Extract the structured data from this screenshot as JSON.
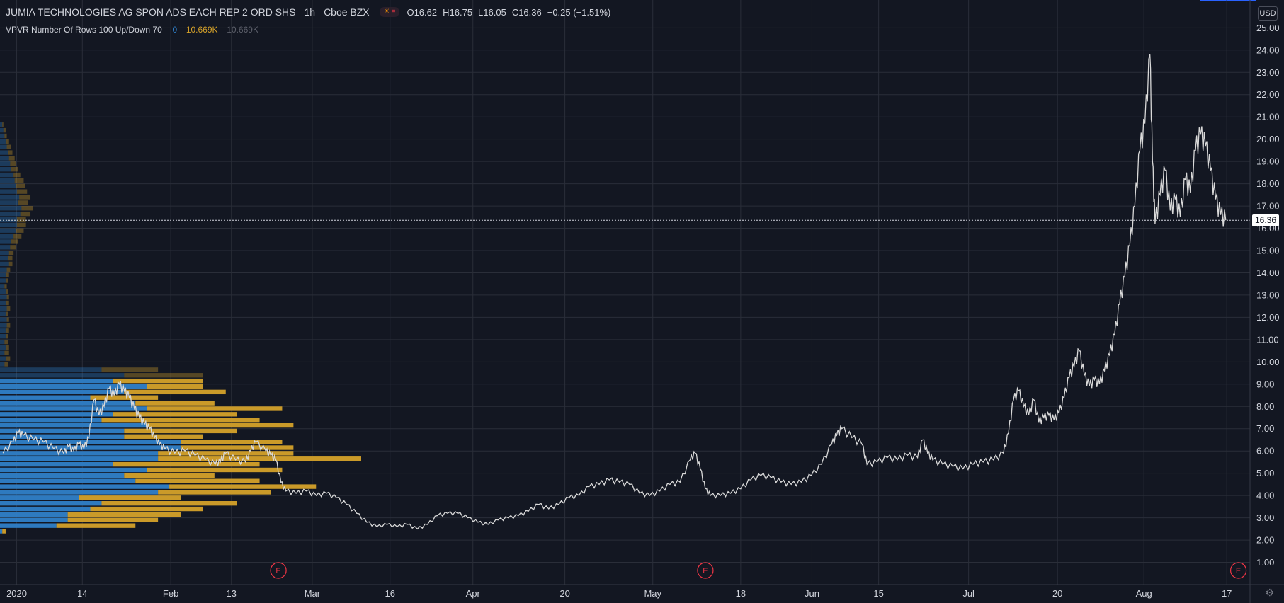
{
  "header": {
    "symbol": "JUMIA TECHNOLOGIES AG SPON ADS EACH REP 2 ORD SHS",
    "interval": "1h",
    "exchange": "Cboe BZX",
    "ohlc": {
      "open": "O16.62",
      "high": "H16.75",
      "low": "L16.05",
      "close": "C16.36",
      "change": "−0.25 (−1.51%)"
    }
  },
  "indicator": {
    "label": "VPVR Number Of Rows 100 Up/Down 70",
    "v1": "0",
    "v2": "10.669K",
    "v3": "10.669K"
  },
  "currency": "USD",
  "last_price": "16.36",
  "colors": {
    "background": "#131722",
    "grid": "#2a2e39",
    "axis_text": "#d1d4dc",
    "up_volume": "#2f7fc8",
    "down_volume": "#d4a12a",
    "price": "#d9d9d9",
    "earnings": "#f23645",
    "v1": "#2f7fc8",
    "v2": "#d4a12a",
    "v3": "#5d606b"
  },
  "icons": {
    "settings": "gear-icon",
    "earnings": "earnings-marker-icon"
  },
  "chart_data": {
    "type": "line",
    "y_ticks": [
      "1.00",
      "2.00",
      "3.00",
      "4.00",
      "5.00",
      "6.00",
      "7.00",
      "8.00",
      "9.00",
      "10.00",
      "11.00",
      "12.00",
      "13.00",
      "14.00",
      "15.00",
      "16.00",
      "17.00",
      "18.00",
      "19.00",
      "20.00",
      "21.00",
      "22.00",
      "23.00",
      "24.00",
      "25.00"
    ],
    "ylim": [
      0,
      26.25
    ],
    "x_ticks": [
      {
        "label": "2020",
        "t": 0.7
      },
      {
        "label": "14",
        "t": 13.7
      },
      {
        "label": "Feb",
        "t": 31.2
      },
      {
        "label": "13",
        "t": 43.2
      },
      {
        "label": "Mar",
        "t": 59.2
      },
      {
        "label": "16",
        "t": 74.6
      },
      {
        "label": "Apr",
        "t": 91.0
      },
      {
        "label": "20",
        "t": 109.2
      },
      {
        "label": "May",
        "t": 126.6
      },
      {
        "label": "18",
        "t": 144.0
      },
      {
        "label": "Jun",
        "t": 158.1
      },
      {
        "label": "15",
        "t": 171.3
      },
      {
        "label": "Jul",
        "t": 189.1
      },
      {
        "label": "20",
        "t": 206.7
      },
      {
        "label": "Aug",
        "t": 223.8
      },
      {
        "label": "17",
        "t": 240.2
      }
    ],
    "xlim": [
      -2.6,
      244.8
    ],
    "price_series": [
      [
        -2,
        5.9
      ],
      [
        0,
        6.4
      ],
      [
        1,
        6.8
      ],
      [
        2,
        6.7
      ],
      [
        4,
        6.5
      ],
      [
        6,
        6.4
      ],
      [
        8,
        6.1
      ],
      [
        10,
        5.9
      ],
      [
        11,
        6.2
      ],
      [
        12,
        6.0
      ],
      [
        13,
        6.3
      ],
      [
        14,
        6.1
      ],
      [
        15,
        6.6
      ],
      [
        16,
        8.3
      ],
      [
        17,
        7.6
      ],
      [
        18,
        8.0
      ],
      [
        19,
        8.8
      ],
      [
        20,
        8.5
      ],
      [
        21,
        9.0
      ],
      [
        22,
        8.7
      ],
      [
        23,
        8.4
      ],
      [
        24,
        7.9
      ],
      [
        25,
        7.5
      ],
      [
        26,
        7.2
      ],
      [
        27,
        7.0
      ],
      [
        28,
        6.6
      ],
      [
        29,
        6.3
      ],
      [
        30,
        6.1
      ],
      [
        32,
        5.9
      ],
      [
        34,
        6.0
      ],
      [
        36,
        5.8
      ],
      [
        38,
        5.6
      ],
      [
        40,
        5.4
      ],
      [
        41,
        5.5
      ],
      [
        42,
        5.9
      ],
      [
        44,
        5.6
      ],
      [
        46,
        5.5
      ],
      [
        47,
        6.0
      ],
      [
        48,
        6.4
      ],
      [
        50,
        6.0
      ],
      [
        51,
        5.8
      ],
      [
        52,
        5.6
      ],
      [
        53,
        4.6
      ],
      [
        54,
        4.2
      ],
      [
        56,
        4.1
      ],
      [
        58,
        4.2
      ],
      [
        60,
        4.0
      ],
      [
        62,
        4.1
      ],
      [
        64,
        3.9
      ],
      [
        66,
        3.6
      ],
      [
        68,
        3.2
      ],
      [
        70,
        2.8
      ],
      [
        72,
        2.6
      ],
      [
        74,
        2.7
      ],
      [
        76,
        2.6
      ],
      [
        78,
        2.7
      ],
      [
        80,
        2.5
      ],
      [
        82,
        2.7
      ],
      [
        84,
        3.1
      ],
      [
        86,
        3.2
      ],
      [
        88,
        3.2
      ],
      [
        90,
        3.0
      ],
      [
        92,
        2.8
      ],
      [
        94,
        2.7
      ],
      [
        96,
        2.9
      ],
      [
        98,
        3.0
      ],
      [
        100,
        3.1
      ],
      [
        102,
        3.3
      ],
      [
        104,
        3.6
      ],
      [
        106,
        3.4
      ],
      [
        108,
        3.6
      ],
      [
        110,
        3.9
      ],
      [
        112,
        4.0
      ],
      [
        114,
        4.4
      ],
      [
        116,
        4.5
      ],
      [
        118,
        4.7
      ],
      [
        120,
        4.6
      ],
      [
        122,
        4.5
      ],
      [
        124,
        4.1
      ],
      [
        126,
        4.0
      ],
      [
        128,
        4.2
      ],
      [
        130,
        4.5
      ],
      [
        132,
        4.6
      ],
      [
        134,
        5.6
      ],
      [
        135,
        5.9
      ],
      [
        136,
        5.2
      ],
      [
        137,
        4.3
      ],
      [
        138,
        4.0
      ],
      [
        140,
        4.0
      ],
      [
        142,
        4.1
      ],
      [
        144,
        4.3
      ],
      [
        146,
        4.7
      ],
      [
        148,
        4.9
      ],
      [
        150,
        4.8
      ],
      [
        152,
        4.6
      ],
      [
        154,
        4.5
      ],
      [
        156,
        4.6
      ],
      [
        158,
        4.9
      ],
      [
        160,
        5.4
      ],
      [
        162,
        6.3
      ],
      [
        163,
        6.7
      ],
      [
        164,
        7.0
      ],
      [
        166,
        6.6
      ],
      [
        168,
        6.3
      ],
      [
        169,
        5.4
      ],
      [
        171,
        5.5
      ],
      [
        173,
        5.7
      ],
      [
        175,
        5.6
      ],
      [
        177,
        5.8
      ],
      [
        179,
        5.7
      ],
      [
        180,
        6.5
      ],
      [
        181,
        5.9
      ],
      [
        182,
        5.6
      ],
      [
        184,
        5.4
      ],
      [
        186,
        5.3
      ],
      [
        188,
        5.2
      ],
      [
        190,
        5.4
      ],
      [
        192,
        5.5
      ],
      [
        194,
        5.6
      ],
      [
        196,
        5.9
      ],
      [
        197,
        6.8
      ],
      [
        198,
        8.3
      ],
      [
        199,
        8.7
      ],
      [
        200,
        8.0
      ],
      [
        201,
        7.6
      ],
      [
        202,
        8.3
      ],
      [
        203,
        7.3
      ],
      [
        204,
        7.5
      ],
      [
        205,
        7.6
      ],
      [
        206,
        7.4
      ],
      [
        207,
        7.7
      ],
      [
        208,
        8.4
      ],
      [
        209,
        9.3
      ],
      [
        210,
        9.8
      ],
      [
        211,
        10.5
      ],
      [
        212,
        9.4
      ],
      [
        213,
        8.9
      ],
      [
        214,
        9.2
      ],
      [
        215,
        9.0
      ],
      [
        216,
        9.6
      ],
      [
        217,
        10.3
      ],
      [
        218,
        11.2
      ],
      [
        219,
        12.6
      ],
      [
        220,
        13.8
      ],
      [
        221,
        15.2
      ],
      [
        222,
        17.0
      ],
      [
        223,
        19.5
      ],
      [
        224,
        20.7
      ],
      [
        225,
        23.8
      ],
      [
        225.5,
        19.0
      ],
      [
        226,
        16.2
      ],
      [
        227,
        17.5
      ],
      [
        228,
        18.6
      ],
      [
        229,
        16.8
      ],
      [
        230,
        17.3
      ],
      [
        231,
        16.5
      ],
      [
        232,
        18.2
      ],
      [
        233,
        17.6
      ],
      [
        234,
        19.5
      ],
      [
        235,
        20.2
      ],
      [
        236,
        19.7
      ],
      [
        237,
        18.6
      ],
      [
        238,
        17.3
      ],
      [
        239,
        16.6
      ],
      [
        240,
        16.36
      ]
    ],
    "last": 16.36,
    "earnings_at": [
      52.5,
      137,
      242.5
    ],
    "volume_profile": {
      "price_low": 2.25,
      "price_step": 0.25,
      "rows": [
        [
          0.2,
          0.3
        ],
        [
          5,
          7
        ],
        [
          6,
          8
        ],
        [
          6,
          10
        ],
        [
          8,
          10
        ],
        [
          9,
          12
        ],
        [
          7,
          9
        ],
        [
          14,
          10
        ],
        [
          15,
          13
        ],
        [
          12,
          11
        ],
        [
          11,
          8
        ],
        [
          13,
          12
        ],
        [
          10,
          13
        ],
        [
          14,
          18
        ],
        [
          14,
          12
        ],
        [
          16,
          10
        ],
        [
          16,
          9
        ],
        [
          11,
          7
        ],
        [
          11,
          10
        ],
        [
          13,
          13
        ],
        [
          9,
          14
        ],
        [
          10,
          11
        ],
        [
          13,
          12
        ],
        [
          12,
          7
        ],
        [
          8,
          6
        ],
        [
          11,
          9
        ],
        [
          13,
          5
        ],
        [
          10,
          8
        ],
        [
          11,
          7
        ],
        [
          9,
          5
        ],
        [
          0.4,
          0.3
        ],
        [
          0.5,
          0.4
        ],
        [
          0.4,
          0.4
        ],
        [
          0.5,
          0.3
        ],
        [
          0.4,
          0.3
        ],
        [
          0.5,
          0.2
        ],
        [
          0.5,
          0.3
        ],
        [
          0.6,
          0.3
        ],
        [
          0.6,
          0.2
        ],
        [
          0.5,
          0.2
        ],
        [
          0.6,
          0.3
        ],
        [
          0.5,
          0.3
        ],
        [
          0.6,
          0.2
        ],
        [
          0.5,
          0.2
        ],
        [
          0.4,
          0.2
        ],
        [
          0.5,
          0.2
        ],
        [
          0.5,
          0.3
        ],
        [
          0.6,
          0.3
        ],
        [
          0.8,
          0.3
        ],
        [
          0.7,
          0.4
        ],
        [
          0.8,
          0.4
        ],
        [
          0.9,
          0.5
        ],
        [
          1.0,
          0.6
        ],
        [
          1.2,
          0.7
        ],
        [
          1.4,
          0.7
        ],
        [
          1.5,
          0.8
        ],
        [
          1.5,
          0.8
        ],
        [
          1.8,
          0.9
        ],
        [
          1.9,
          1.0
        ],
        [
          1.6,
          0.9
        ],
        [
          1.7,
          1.0
        ],
        [
          1.5,
          0.9
        ],
        [
          1.4,
          0.8
        ],
        [
          1.3,
          0.8
        ],
        [
          1.2,
          0.6
        ],
        [
          1.0,
          0.6
        ],
        [
          0.9,
          0.5
        ],
        [
          0.8,
          0.5
        ],
        [
          0.7,
          0.4
        ],
        [
          0.6,
          0.4
        ],
        [
          0.5,
          0.3
        ],
        [
          0.4,
          0.2
        ],
        [
          0.3,
          0.2
        ],
        [
          0.2,
          0.1
        ]
      ]
    }
  }
}
